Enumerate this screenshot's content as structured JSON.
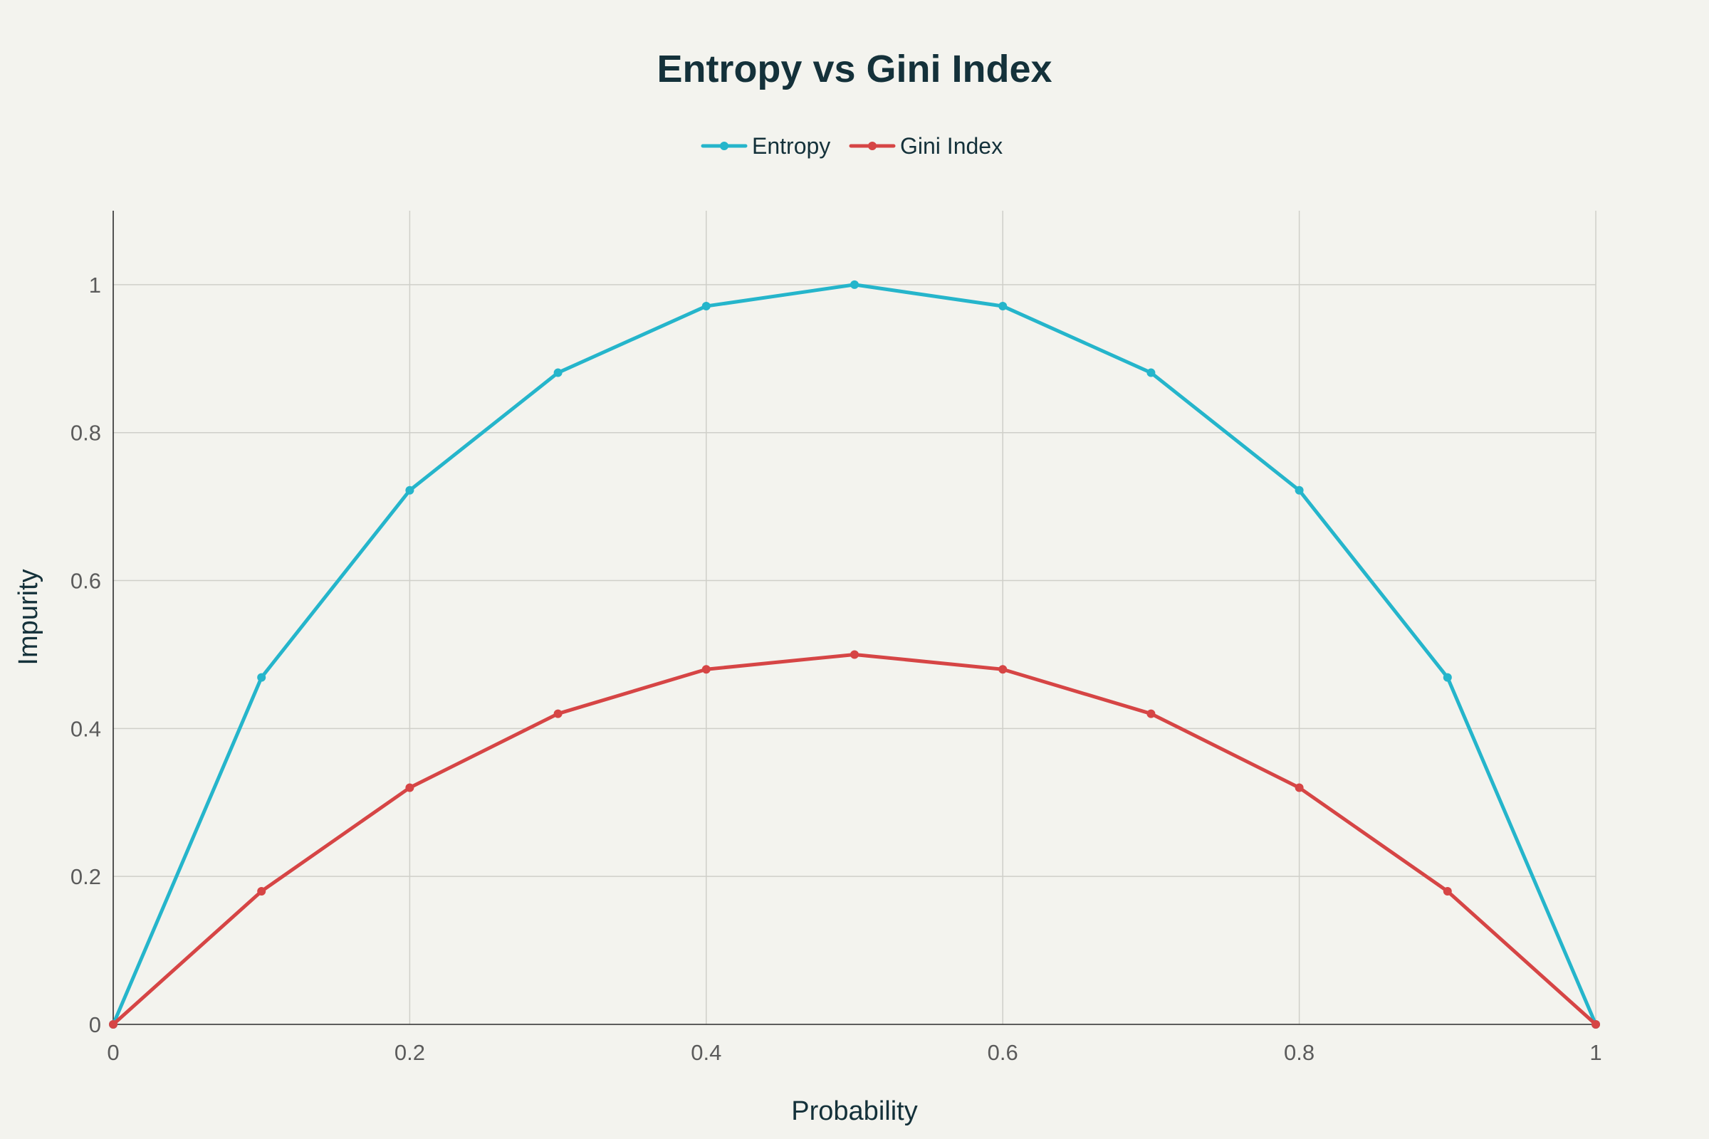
{
  "chart_data": {
    "type": "line",
    "title": "Entropy vs Gini Index",
    "xlabel": "Probability",
    "ylabel": "Impurity",
    "x": [
      0,
      0.1,
      0.2,
      0.3,
      0.4,
      0.5,
      0.6,
      0.7,
      0.8,
      0.9,
      1
    ],
    "series": [
      {
        "name": "Entropy",
        "color": "#25b5cb",
        "values": [
          0,
          0.469,
          0.722,
          0.881,
          0.971,
          1,
          0.971,
          0.881,
          0.722,
          0.469,
          0
        ]
      },
      {
        "name": "Gini Index",
        "color": "#d64545",
        "values": [
          0,
          0.18,
          0.32,
          0.42,
          0.48,
          0.5,
          0.48,
          0.42,
          0.32,
          0.18,
          0
        ]
      }
    ],
    "xlim": [
      0,
      1
    ],
    "ylim": [
      0,
      1.1
    ],
    "x_ticks": [
      0,
      0.2,
      0.4,
      0.6,
      0.8,
      1
    ],
    "x_tick_labels": [
      "0",
      "0.2",
      "0.4",
      "0.6",
      "0.8",
      "1"
    ],
    "y_ticks": [
      0,
      0.2,
      0.4,
      0.6,
      0.8,
      1
    ],
    "y_tick_labels": [
      "0",
      "0.2",
      "0.4",
      "0.6",
      "0.8",
      "1"
    ],
    "grid": true,
    "legend_position": "top-center",
    "background_color": "#f3f3ee"
  }
}
